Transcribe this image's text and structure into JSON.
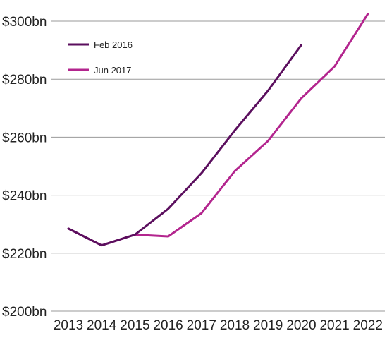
{
  "chart_data": {
    "type": "line",
    "title": "",
    "xlabel": "",
    "ylabel": "",
    "categories": [
      "2013",
      "2014",
      "2015",
      "2016",
      "2017",
      "2018",
      "2019",
      "2020",
      "2021",
      "2022"
    ],
    "ylim": [
      200,
      300
    ],
    "y_ticks": [
      200,
      220,
      240,
      260,
      280,
      300
    ],
    "y_tick_labels": [
      "$200bn",
      "$220bn",
      "$240bn",
      "$260bn",
      "$280bn",
      "$300bn"
    ],
    "grid": true,
    "legend_position": "top-left",
    "series": [
      {
        "name": "Feb 2016",
        "color": "#5b0f5e",
        "values": [
          228.5,
          222.7,
          226.4,
          235.3,
          247.6,
          262.3,
          276.0,
          291.8,
          null,
          null
        ]
      },
      {
        "name": "Jun 2017",
        "color": "#b3258e",
        "values": [
          228.5,
          222.7,
          226.4,
          225.8,
          233.8,
          248.3,
          258.7,
          273.4,
          284.4,
          302.5
        ]
      }
    ]
  }
}
